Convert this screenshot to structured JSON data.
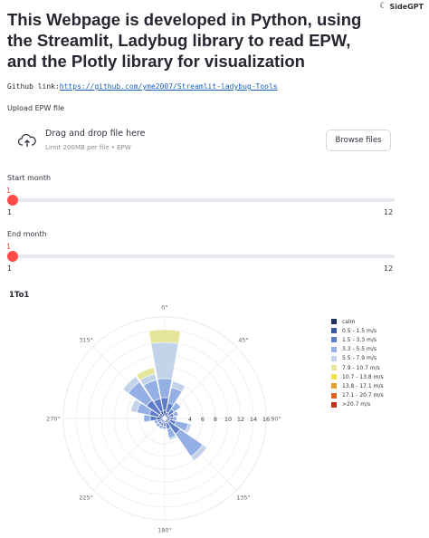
{
  "sidegpt": {
    "label": "SideGPT"
  },
  "title": "This Webpage is developed in Python, using the Streamlit, Ladybug library to read EPW, and the Plotly library for visualization",
  "github": {
    "prefix": "Github link:",
    "url": "https://github.com/yme2007/Streamlit-ladybug-Tools"
  },
  "uploader": {
    "label": "Upload EPW file",
    "drag_text": "Drag and drop file here",
    "limit_text": "Limit 200MB per file • EPW",
    "browse_label": "Browse files"
  },
  "start_slider": {
    "label": "Start month",
    "value": "1",
    "min_label": "1",
    "max_label": "12",
    "value_fraction": 0
  },
  "end_slider": {
    "label": "End month",
    "value": "1",
    "min_label": "1",
    "max_label": "12",
    "value_fraction": 0
  },
  "chart_data": {
    "type": "barpolar",
    "title": "1To1",
    "angular_labels": [
      "0°",
      "45°",
      "90°",
      "135°",
      "180°",
      "225°",
      "270°",
      "315°"
    ],
    "radial_ticks": [
      4,
      6,
      8,
      10,
      12,
      14,
      16
    ],
    "radial_range": [
      0,
      16
    ],
    "directions_deg": [
      0,
      22.5,
      45,
      67.5,
      90,
      112.5,
      135,
      157.5,
      180,
      202.5,
      225,
      247.5,
      270,
      292.5,
      315,
      337.5
    ],
    "series": [
      {
        "name": "calm",
        "color": "#1f2f5e",
        "values": [
          0.3,
          0.2,
          0.2,
          0.2,
          0.3,
          0.2,
          0.2,
          0.2,
          0.2,
          0.2,
          0.2,
          0.2,
          0.3,
          0.2,
          0.2,
          0.2
        ]
      },
      {
        "name": "0.5 - 1.5 m/s",
        "color": "#3a57a4",
        "values": [
          1.0,
          0.8,
          0.6,
          0.6,
          0.6,
          0.6,
          0.6,
          0.5,
          0.5,
          0.5,
          0.5,
          0.5,
          1.0,
          0.8,
          0.8,
          1.0
        ]
      },
      {
        "name": "1.5 - 3.3 m/s",
        "color": "#5f7cc8",
        "values": [
          2.0,
          1.5,
          1.0,
          0.7,
          0.5,
          1.0,
          2.2,
          1.0,
          0.5,
          0.5,
          0.5,
          0.5,
          1.0,
          1.5,
          2.5,
          2.0
        ]
      },
      {
        "name": "3.3 - 5.5 m/s",
        "color": "#94afe3",
        "values": [
          3.0,
          2.5,
          1.3,
          0.7,
          0.5,
          2.0,
          4.3,
          1.5,
          0.5,
          0.5,
          0.5,
          0.5,
          1.0,
          2.0,
          3.5,
          3.0
        ]
      },
      {
        "name": "5.5 - 7.9 m/s",
        "color": "#c2d3ea",
        "values": [
          5.7,
          1.0,
          0.0,
          0.0,
          0.0,
          0.5,
          0.8,
          0.3,
          0.0,
          0.0,
          0.0,
          0.0,
          0.0,
          1.0,
          1.0,
          1.0
        ]
      },
      {
        "name": "7.9 - 10.7 m/s",
        "color": "#e6e59c",
        "values": [
          2.0,
          0.0,
          0.0,
          0.0,
          0.0,
          0.0,
          0.0,
          0.0,
          0.0,
          0.0,
          0.0,
          0.0,
          0.0,
          0.0,
          0.0,
          1.0
        ]
      },
      {
        "name": "10.7 - 13.8 m/s",
        "color": "#f5e14a",
        "values": [
          0,
          0,
          0,
          0,
          0,
          0,
          0,
          0,
          0,
          0,
          0,
          0,
          0,
          0,
          0,
          0
        ]
      },
      {
        "name": "13.8 - 17.1 m/s",
        "color": "#e8a12a",
        "values": [
          0,
          0,
          0,
          0,
          0,
          0,
          0,
          0,
          0,
          0,
          0,
          0,
          0,
          0,
          0,
          0
        ]
      },
      {
        "name": "17.1 - 20.7 m/s",
        "color": "#e0631f",
        "values": [
          0,
          0,
          0,
          0,
          0,
          0,
          0,
          0,
          0,
          0,
          0,
          0,
          0,
          0,
          0,
          0
        ]
      },
      {
        "name": ">20.7 m/s",
        "color": "#c9301c",
        "values": [
          0,
          0,
          0,
          0,
          0,
          0,
          0,
          0,
          0,
          0,
          0,
          0,
          0,
          0,
          0,
          0
        ]
      }
    ],
    "legend_position": "right"
  }
}
